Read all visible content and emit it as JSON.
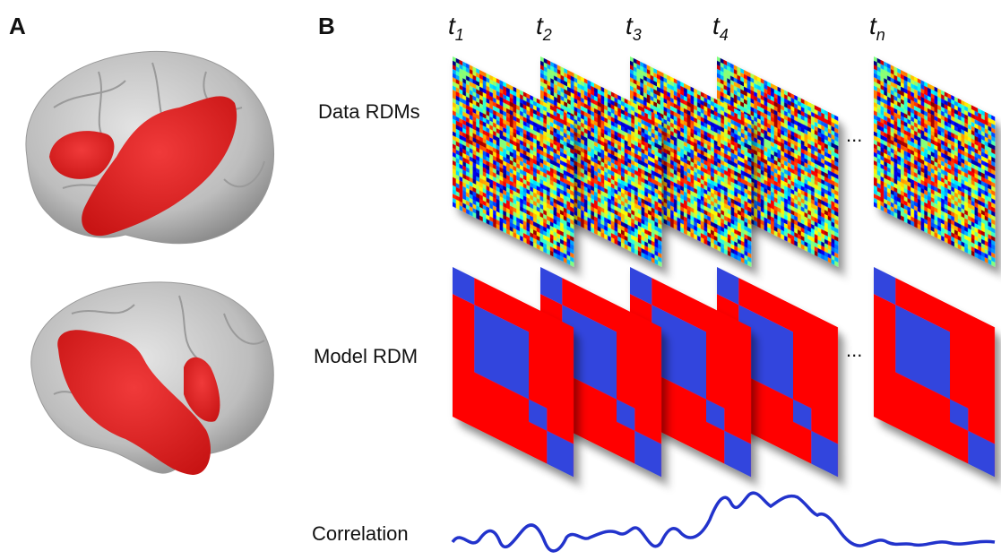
{
  "panels": {
    "a": {
      "label": "A"
    },
    "b": {
      "label": "B",
      "time_points": [
        {
          "var": "t",
          "sub": "1"
        },
        {
          "var": "t",
          "sub": "2"
        },
        {
          "var": "t",
          "sub": "3"
        },
        {
          "var": "t",
          "sub": "4"
        },
        {
          "var": "t",
          "sub": "n"
        }
      ],
      "rows": {
        "data": "Data RDMs",
        "model": "Model RDM",
        "correlation": "Correlation"
      },
      "ellipsis": "..."
    }
  }
}
